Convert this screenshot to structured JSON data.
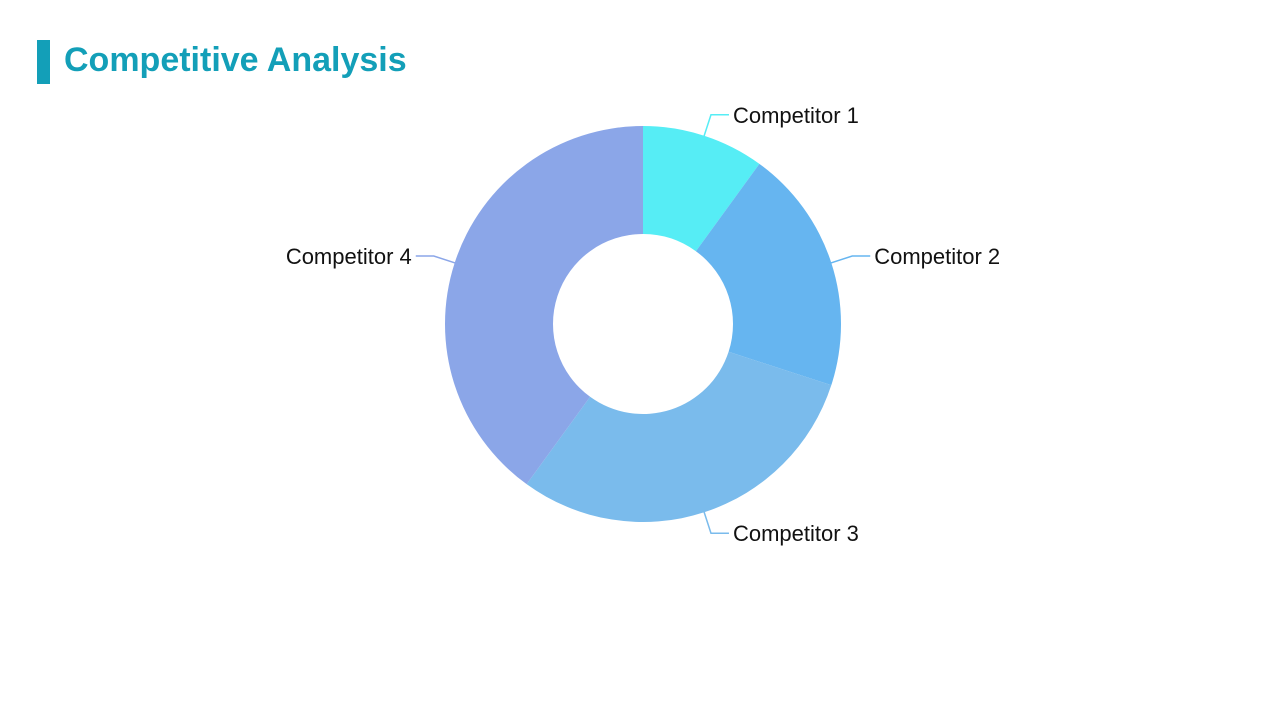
{
  "slide": {
    "title": "Competitive Analysis",
    "accent_color": "#139fb8"
  },
  "chart_data": {
    "type": "pie",
    "variant": "donut",
    "title": "",
    "legend": "none",
    "slices": [
      {
        "label": "Competitor 1",
        "value": 10,
        "color": "#56edf5"
      },
      {
        "label": "Competitor 2",
        "value": 20,
        "color": "#66b5f0"
      },
      {
        "label": "Competitor 3",
        "value": 30,
        "color": "#7abbec"
      },
      {
        "label": "Competitor 4",
        "value": 40,
        "color": "#8ba6e8"
      }
    ]
  }
}
